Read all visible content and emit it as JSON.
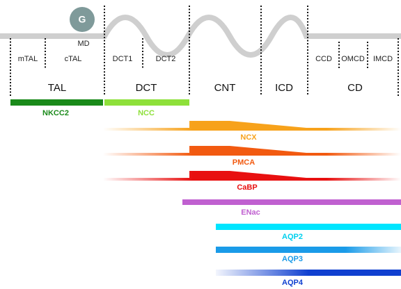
{
  "marker": {
    "label": "G",
    "caption": "MD"
  },
  "subsegments": [
    "mTAL",
    "cTAL",
    "DCT1",
    "DCT2",
    "CCD",
    "OMCD",
    "IMCD"
  ],
  "segments": [
    "TAL",
    "DCT",
    "CNT",
    "ICD",
    "CD"
  ],
  "transporters": [
    "NKCC2",
    "NCC",
    "NCX",
    "PMCA",
    "CaBP",
    "ENac",
    "AQP2",
    "AQP3",
    "AQP4"
  ]
}
